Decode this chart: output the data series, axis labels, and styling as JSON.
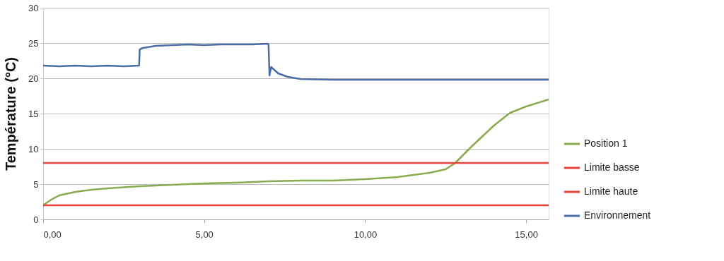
{
  "chart_data": {
    "type": "line",
    "ylabel": "Température (°C)",
    "xlim": [
      0,
      15.7
    ],
    "xticks": [
      {
        "value": 0,
        "label": "0,00"
      },
      {
        "value": 5,
        "label": "5,00"
      },
      {
        "value": 10,
        "label": "10,00"
      },
      {
        "value": 15,
        "label": "15,00"
      }
    ],
    "ylim": [
      0,
      30
    ],
    "yticks": [
      0,
      5,
      10,
      15,
      20,
      25,
      30
    ],
    "grid": "y",
    "legend": "right",
    "marker": "none",
    "line_style": "solid",
    "series": [
      {
        "name": "Position 1",
        "color": "#8aaa50",
        "x": [
          0,
          0.25,
          0.5,
          1,
          1.5,
          2,
          3,
          4,
          5,
          6,
          7,
          8,
          9,
          10,
          11,
          12,
          12.5,
          12.8,
          13.3,
          14,
          14.5,
          15,
          15.7
        ],
        "values": [
          2.0,
          2.8,
          3.4,
          3.9,
          4.2,
          4.4,
          4.7,
          4.9,
          5.1,
          5.2,
          5.4,
          5.5,
          5.5,
          5.7,
          6.0,
          6.6,
          7.1,
          8.0,
          10.3,
          13.3,
          15.1,
          16.0,
          17.0
        ]
      },
      {
        "name": "Limite basse",
        "color": "#e8423a",
        "x": [
          0,
          15.7
        ],
        "values": [
          8,
          8
        ]
      },
      {
        "name": "Limite haute",
        "color": "#e8423a",
        "x": [
          0,
          15.7
        ],
        "values": [
          2,
          2
        ]
      },
      {
        "name": "Environnement",
        "color": "#4a6fa8",
        "x": [
          0,
          0.5,
          1,
          1.5,
          2,
          2.5,
          2.98,
          3.0,
          3.1,
          3.5,
          4,
          4.5,
          5,
          5.5,
          6,
          6.5,
          6.98,
          7.0,
          7.03,
          7.08,
          7.3,
          7.6,
          8,
          9,
          10,
          11,
          12,
          13,
          14,
          15,
          15.7
        ],
        "values": [
          21.8,
          21.7,
          21.8,
          21.7,
          21.8,
          21.7,
          21.8,
          24.1,
          24.3,
          24.6,
          24.7,
          24.8,
          24.7,
          24.8,
          24.8,
          24.8,
          24.9,
          24.8,
          20.4,
          21.6,
          20.7,
          20.2,
          19.9,
          19.8,
          19.8,
          19.8,
          19.8,
          19.8,
          19.8,
          19.8,
          19.8
        ]
      }
    ]
  }
}
